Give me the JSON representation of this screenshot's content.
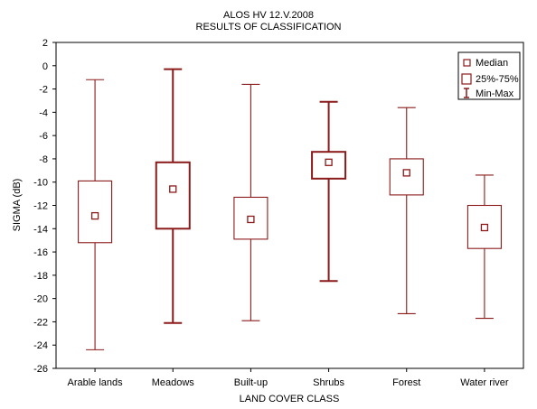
{
  "chart_data": {
    "type": "box",
    "title": "ALOS HV 12.V.2008",
    "subtitle": "RESULTS OF CLASSIFICATION",
    "xlabel": "LAND COVER CLASS",
    "ylabel": "SIGMA (dB)",
    "ylim": [
      -26,
      2
    ],
    "yticks": [
      2,
      0,
      -2,
      -4,
      -6,
      -8,
      -10,
      -12,
      -14,
      -16,
      -18,
      -20,
      -22,
      -24,
      -26
    ],
    "grid": false,
    "legend_position": "top-right",
    "legend": {
      "median": "Median",
      "box": "25%-75%",
      "range": "Min-Max"
    },
    "color": "#8b1a1a",
    "categories": [
      "Arable lands",
      "Meadows",
      "Built-up",
      "Shrubs",
      "Forest",
      "Water river"
    ],
    "series": [
      {
        "category": "Arable lands",
        "min": -24.4,
        "q1": -15.2,
        "median": -12.9,
        "q3": -9.9,
        "max": -1.2,
        "bold": false
      },
      {
        "category": "Meadows",
        "min": -22.1,
        "q1": -14.0,
        "median": -10.6,
        "q3": -8.3,
        "max": -0.3,
        "bold": true
      },
      {
        "category": "Built-up",
        "min": -21.9,
        "q1": -14.9,
        "median": -13.2,
        "q3": -11.3,
        "max": -1.6,
        "bold": false
      },
      {
        "category": "Shrubs",
        "min": -18.5,
        "q1": -9.7,
        "median": -8.3,
        "q3": -7.4,
        "max": -3.1,
        "bold": true
      },
      {
        "category": "Forest",
        "min": -21.3,
        "q1": -11.1,
        "median": -9.2,
        "q3": -8.0,
        "max": -3.6,
        "bold": false
      },
      {
        "category": "Water river",
        "min": -21.7,
        "q1": -15.7,
        "median": -13.9,
        "q3": -12.0,
        "max": -9.4,
        "bold": false
      }
    ]
  }
}
